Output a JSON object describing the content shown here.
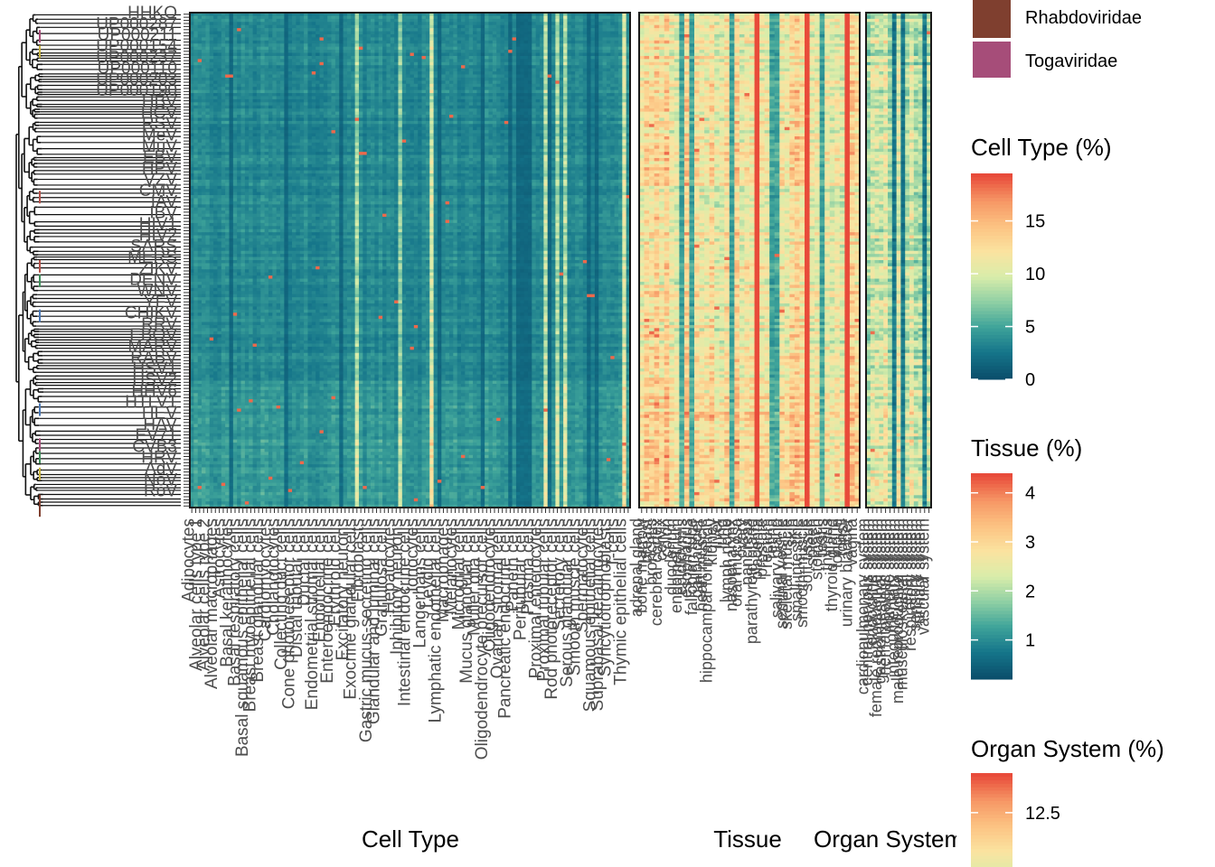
{
  "chart_data": {
    "type": "heatmap",
    "panels": [
      {
        "key": "cell",
        "title": "Cell Type",
        "legend_title": "Cell Type (%)",
        "legend_ticks": [
          0,
          5,
          10,
          15
        ],
        "scale_range": [
          0,
          19.5
        ],
        "n_columns": 112,
        "typical_value": 3.2,
        "visible_column_labels": [
          "Adipocytes",
          "Alveolar cells type 1",
          "Alveolar cells type 2",
          "Alveolar macrophages",
          "Astrocytes",
          "Basal keratinocytes",
          "Basal respiratory cells",
          "Basal squamous epithelial cells",
          "Breast myoepithelial cells",
          "Breast glandular cells",
          "Cardiomyocytes",
          "Cholangiocytes",
          "Collecting duct cells",
          "Cone photoreceptor cells",
          "Distal tubular cells",
          "Ductal cells",
          "Endometrial stromal cells",
          "Endothelial cells",
          "Enteroendocrine cells",
          "Erythroid cells",
          "Excitatory neurons",
          "Exocrine glandular cells",
          "Fibroblasts",
          "Gastric mucus-secreting cells",
          "Glandular and luminal cells",
          "Granulosa cells",
          "Hepatocytes",
          "Inhibitory neurons",
          "Intestinal endocrine cells",
          "Ionocytes",
          "Langerhans cells",
          "Leydig cells",
          "Lymphatic endothelial cells",
          "Macrophages",
          "Melanocytes",
          "Microglial cells",
          "Mucus glandular cells",
          "Muller glia cells",
          "Oligodendrocyte precursor cells",
          "Oligodendrocytes",
          "Ovarian stromal cells",
          "Pancreatic endocrine cells",
          "Paneth cells",
          "Peritubular cells",
          "Plasma cells",
          "Proximal enterocytes",
          "Proximal tubular cells",
          "Rod photoreceptor cells",
          "Secretory cells",
          "Serous glandular cells",
          "Smooth muscle cells",
          "Spermatocytes",
          "Squamous epithelial cells",
          "Suprabasal keratinocytes",
          "Syncytiotrophoblasts",
          "T-cells",
          "Thymic epithelial cells"
        ]
      },
      {
        "key": "tissue",
        "title": "Tissue",
        "legend_title": "Tissue (%)",
        "legend_ticks": [
          1,
          2,
          3,
          4
        ],
        "scale_range": [
          0.2,
          4.4
        ],
        "n_columns": 44,
        "typical_value": 2.5,
        "visible_column_labels": [
          "adrenal gland",
          "bone marrow",
          "breast",
          "bronchus",
          "cerebral cortex",
          "cervix",
          "colon",
          "duodenum",
          "endometrium",
          "epididymis",
          "esophagus",
          "fallopian tube",
          "gallbladder",
          "heart muscle",
          "hippocampal formation",
          "kidney",
          "liver",
          "lung",
          "lymph node",
          "nasopharynx",
          "oral mucosa",
          "ovary",
          "pancreas",
          "parathyroid gland",
          "placenta",
          "prostate",
          "rectum",
          "retina",
          "salivary gland",
          "seminal vesicle",
          "skeletal muscle",
          "skin",
          "small intestine",
          "smooth muscle",
          "soft tissue",
          "spleen",
          "stomach",
          "testis",
          "thymus",
          "thyroid gland",
          "tongue",
          "tonsil",
          "urinary bladder",
          "vagina"
        ]
      },
      {
        "key": "organ",
        "title": "Organ System",
        "legend_title": "Organ System (%)",
        "legend_ticks": [
          12.5
        ],
        "scale_range": [
          2.0,
          15.0
        ],
        "n_columns": 15,
        "typical_value": 7.5,
        "visible_column_labels": [
          "cardiopulmonary system",
          "central nervous system",
          "endocrine system",
          "female reproductive system",
          "gastrointestinal system",
          "hematopoietic system",
          "immune system",
          "integumentary system",
          "male reproductive system",
          "musculoskeletal system",
          "renal system",
          "respiratory system",
          "sensory system",
          "urinary system",
          "vascular system"
        ]
      }
    ],
    "color_scale": [
      "#0b4f6c",
      "#15758a",
      "#3ea39a",
      "#8fd0a4",
      "#d9edaa",
      "#fbe3a0",
      "#fcc282",
      "#f69665",
      "#e84b3a"
    ],
    "n_rows": 160,
    "row_labels_visible": [
      "HHKO",
      "UP000287",
      "UP000211",
      "UP000154",
      "UP000237",
      "UP000110",
      "UP000203",
      "UP000190",
      "HBV",
      "HCV",
      "RSV",
      "MeV",
      "MuV",
      "EBV",
      "HPV",
      "VZV",
      "CMV",
      "IAV",
      "IBV",
      "HIV1",
      "HIV2",
      "SARS",
      "MERS",
      "ZIKV",
      "DENV",
      "WNV",
      "YFV",
      "CHIKV",
      "RRV",
      "EBOV",
      "MARV",
      "RABV",
      "HSV1",
      "HSV2",
      "HHV6",
      "HTLV1",
      "HEV",
      "HAV",
      "EV71",
      "CVB3",
      "HRV",
      "AdV",
      "NoV",
      "RoV"
    ],
    "dendrogram_groups": [
      "Rhabdoviridae",
      "Togaviridae"
    ]
  },
  "legend": {
    "families": [
      {
        "label": "Rhabdoviridae",
        "color": "#7f3f2f"
      },
      {
        "label": "Togaviridae",
        "color": "#a64d79"
      }
    ]
  }
}
